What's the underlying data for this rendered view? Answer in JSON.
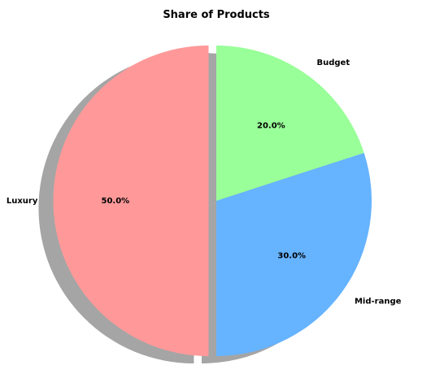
{
  "chart_data": {
    "type": "pie",
    "title": "Share of Products",
    "labels": [
      "Luxury",
      "Mid-range",
      "Budget"
    ],
    "values": [
      50.0,
      30.0,
      20.0
    ],
    "percent_labels": [
      "50.0%",
      "30.0%",
      "20.0%"
    ],
    "colors": [
      "#ff9999",
      "#66b3ff",
      "#99ff99"
    ],
    "explode": [
      0.05,
      0,
      0
    ],
    "shadow": true,
    "start_angle_deg": 90,
    "direction": "counterclockwise",
    "legend": "none"
  }
}
